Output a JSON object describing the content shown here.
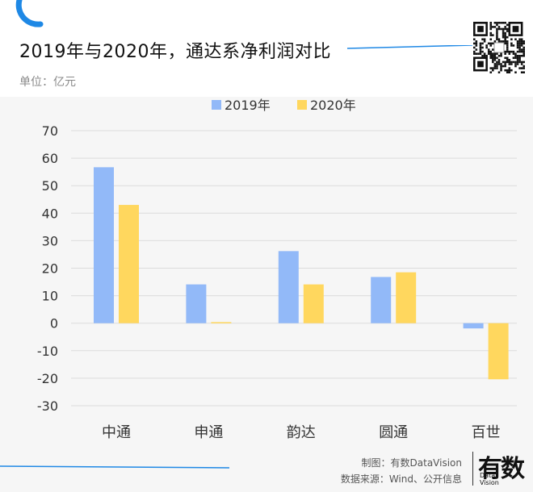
{
  "header": {
    "title": "2019年与2020年，通达系净利润对比",
    "unit": "单位：亿元"
  },
  "colors": {
    "accent": "#1e88e5",
    "series_2019": "#92b9f8",
    "series_2020": "#ffd75e",
    "grid": "#dcdcdc",
    "axis_text": "#333333"
  },
  "chart_data": {
    "type": "bar",
    "categories": [
      "中通",
      "申通",
      "韵达",
      "圆通",
      "百世"
    ],
    "series": [
      {
        "name": "2019年",
        "values": [
          56.7,
          14.1,
          26.2,
          16.8,
          -1.9
        ]
      },
      {
        "name": "2020年",
        "values": [
          43.0,
          0.4,
          14.1,
          18.5,
          -20.4
        ]
      }
    ],
    "yticks": [
      70,
      60,
      50,
      40,
      30,
      20,
      10,
      0,
      -10,
      -20,
      -30
    ],
    "ylim": [
      -30,
      70
    ],
    "grid": true,
    "legend_position": "top-center",
    "xlabel": "",
    "ylabel": ""
  },
  "footer": {
    "credit_maker": "制图：有数DataVision",
    "credit_source": "数据来源：Wind、公开信息",
    "brand_mark": "有数",
    "brand_sub1": "Data",
    "brand_sub2": "Vision"
  }
}
